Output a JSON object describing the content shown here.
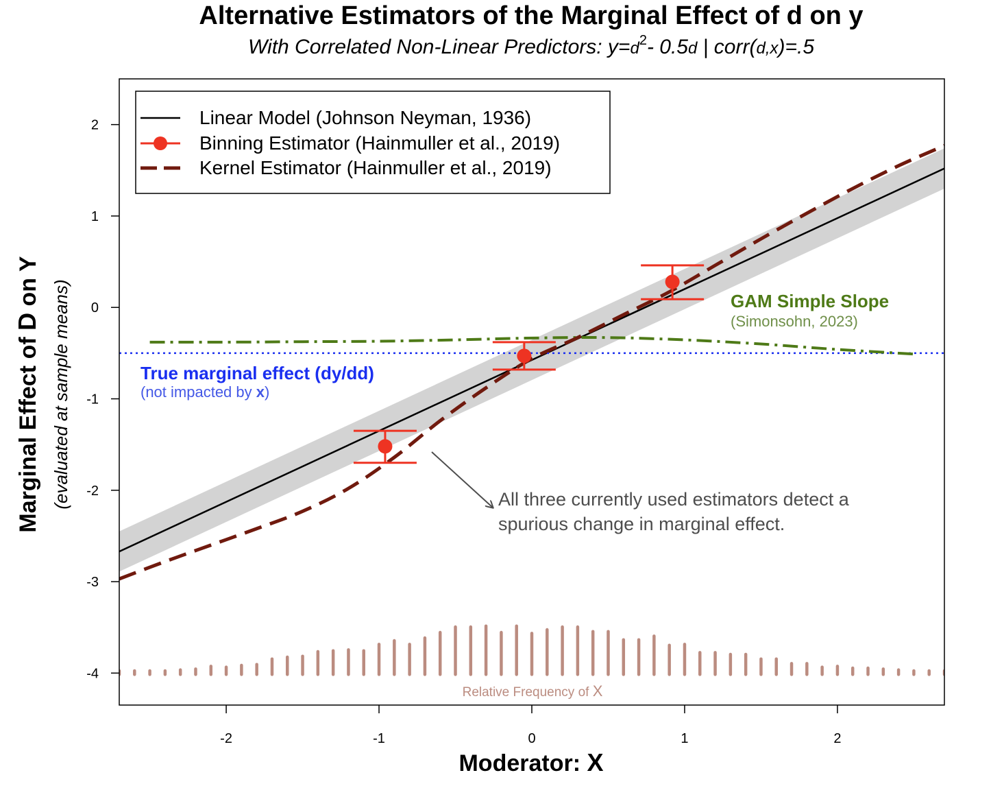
{
  "chart_data": {
    "type": "line",
    "title": "Alternative Estimators of the Marginal Effect of d on y",
    "subtitle": {
      "prefix": "With Correlated Non-Linear Predictors: y=",
      "d1": "d",
      "sup": "2",
      "mid": "- 0.5",
      "d2": "d",
      "sep": " | corr(",
      "d3": "d",
      "comma": ",",
      "x": "x",
      "suffix": ")=.5"
    },
    "xlabel": {
      "text": "Moderator: ",
      "var": "X"
    },
    "ylabel": {
      "text": "Marginal Effect of ",
      "var": "D",
      "suffix": " on Y",
      "sub": "(evaluated at sample means)"
    },
    "xlim": [
      -2.7,
      2.7
    ],
    "ylim": [
      -4.35,
      2.5
    ],
    "xticks": [
      -2,
      -1,
      0,
      1,
      2
    ],
    "yticks": [
      -4,
      -3,
      -2,
      -1,
      0,
      1,
      2
    ],
    "legend": {
      "position": "top-left",
      "entries": [
        {
          "label": "Linear Model (Johnson Neyman, 1936)",
          "style": "solid"
        },
        {
          "label": "Binning Estimator (Hainmuller et al., 2019)",
          "style": "point-line"
        },
        {
          "label": "Kernel Estimator (Hainmuller et al., 2019)",
          "style": "dashed"
        }
      ]
    },
    "series": [
      {
        "name": "Linear Model",
        "x": [
          -2.7,
          2.7
        ],
        "y": [
          -2.67,
          1.52
        ],
        "ci_halfwidth": 0.22,
        "color": "#000000"
      },
      {
        "name": "Kernel Estimator",
        "color": "#701a0e",
        "x": [
          -2.7,
          -2.4,
          -2.1,
          -1.8,
          -1.5,
          -1.2,
          -0.9,
          -0.6,
          -0.3,
          0.0,
          0.3,
          0.6,
          0.9,
          1.2,
          1.5,
          1.8,
          2.1,
          2.4,
          2.7
        ],
        "y": [
          -2.97,
          -2.78,
          -2.6,
          -2.42,
          -2.23,
          -1.98,
          -1.64,
          -1.24,
          -0.88,
          -0.56,
          -0.33,
          -0.08,
          0.17,
          0.46,
          0.75,
          1.03,
          1.3,
          1.55,
          1.77
        ]
      },
      {
        "name": "GAM Simple Slope",
        "color": "#4e7a17",
        "x": [
          -2.5,
          -2.0,
          -1.5,
          -1.0,
          -0.5,
          0.0,
          0.5,
          1.0,
          1.5,
          2.0,
          2.5
        ],
        "y": [
          -0.38,
          -0.38,
          -0.375,
          -0.37,
          -0.355,
          -0.335,
          -0.33,
          -0.355,
          -0.4,
          -0.46,
          -0.51
        ]
      },
      {
        "name": "True marginal effect",
        "x": [
          -2.7,
          2.7
        ],
        "y": [
          -0.5,
          -0.5
        ],
        "color": "#1a2ff0"
      }
    ],
    "binning": {
      "color": "#ee3322",
      "points": [
        {
          "x": -0.96,
          "y": -1.52,
          "lo": -1.7,
          "hi": -1.35
        },
        {
          "x": -0.05,
          "y": -0.53,
          "lo": -0.68,
          "hi": -0.38
        },
        {
          "x": 0.92,
          "y": 0.28,
          "lo": 0.09,
          "hi": 0.46
        }
      ]
    },
    "frequency": {
      "color": "#bb8c80",
      "baseline": -4.0,
      "x": [
        -2.7,
        -2.6,
        -2.5,
        -2.4,
        -2.3,
        -2.2,
        -2.1,
        -2.0,
        -1.9,
        -1.8,
        -1.7,
        -1.6,
        -1.5,
        -1.4,
        -1.3,
        -1.2,
        -1.1,
        -1.0,
        -0.9,
        -0.8,
        -0.7,
        -0.6,
        -0.5,
        -0.4,
        -0.3,
        -0.2,
        -0.1,
        0.0,
        0.1,
        0.2,
        0.3,
        0.4,
        0.5,
        0.6,
        0.7,
        0.8,
        0.9,
        1.0,
        1.1,
        1.2,
        1.3,
        1.4,
        1.5,
        1.6,
        1.7,
        1.8,
        1.9,
        2.0,
        2.1,
        2.2,
        2.3,
        2.4,
        2.5,
        2.6,
        2.7
      ],
      "top": [
        -3.99,
        -3.99,
        -3.99,
        -3.99,
        -3.98,
        -3.97,
        -3.94,
        -3.95,
        -3.93,
        -3.92,
        -3.86,
        -3.84,
        -3.83,
        -3.78,
        -3.77,
        -3.76,
        -3.77,
        -3.7,
        -3.66,
        -3.7,
        -3.63,
        -3.57,
        -3.51,
        -3.51,
        -3.5,
        -3.57,
        -3.5,
        -3.58,
        -3.54,
        -3.51,
        -3.51,
        -3.56,
        -3.56,
        -3.65,
        -3.65,
        -3.61,
        -3.71,
        -3.7,
        -3.79,
        -3.79,
        -3.81,
        -3.81,
        -3.86,
        -3.86,
        -3.91,
        -3.91,
        -3.95,
        -3.94,
        -3.96,
        -3.96,
        -3.97,
        -3.98,
        -3.99,
        -3.99,
        -3.99
      ],
      "label": {
        "text": "Relative Frequency of ",
        "var": "X"
      }
    },
    "annotations": {
      "gam_title": "GAM Simple Slope",
      "gam_sub": "(Simonsohn, 2023)",
      "true_title": "True marginal effect (dy/dd)",
      "true_sub": {
        "text": "(not impacted by ",
        "var": "x",
        "end": ")"
      },
      "note_line1": "All three currently used estimators detect a",
      "note_line2": "spurious change in marginal effect.",
      "gam_color": "#4e7a17",
      "gam_sub_color": "#6f8f49",
      "true_color": "#1a2ff0",
      "true_sub_color": "#4458e6",
      "note_color": "#4d4d4d"
    }
  }
}
